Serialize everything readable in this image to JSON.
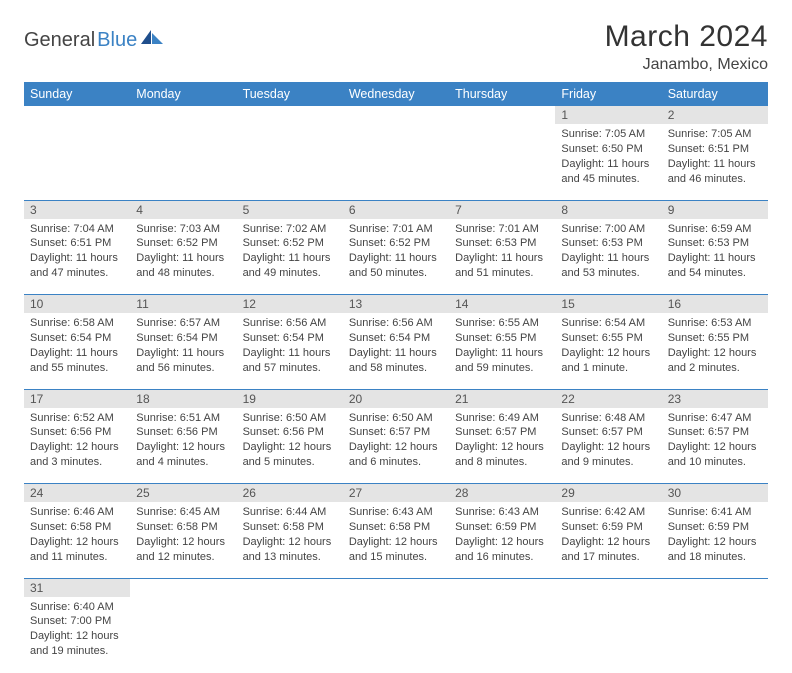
{
  "brand": {
    "part1": "General",
    "part2": "Blue"
  },
  "title": "March 2024",
  "location": "Janambo, Mexico",
  "colors": {
    "header_bg": "#3b82c4",
    "header_text": "#ffffff",
    "daynum_bg": "#e4e4e4",
    "border": "#3b82c4",
    "text": "#444444"
  },
  "day_names": [
    "Sunday",
    "Monday",
    "Tuesday",
    "Wednesday",
    "Thursday",
    "Friday",
    "Saturday"
  ],
  "weeks": [
    [
      null,
      null,
      null,
      null,
      null,
      {
        "n": "1",
        "sunrise": "Sunrise: 7:05 AM",
        "sunset": "Sunset: 6:50 PM",
        "daylight": "Daylight: 11 hours and 45 minutes."
      },
      {
        "n": "2",
        "sunrise": "Sunrise: 7:05 AM",
        "sunset": "Sunset: 6:51 PM",
        "daylight": "Daylight: 11 hours and 46 minutes."
      }
    ],
    [
      {
        "n": "3",
        "sunrise": "Sunrise: 7:04 AM",
        "sunset": "Sunset: 6:51 PM",
        "daylight": "Daylight: 11 hours and 47 minutes."
      },
      {
        "n": "4",
        "sunrise": "Sunrise: 7:03 AM",
        "sunset": "Sunset: 6:52 PM",
        "daylight": "Daylight: 11 hours and 48 minutes."
      },
      {
        "n": "5",
        "sunrise": "Sunrise: 7:02 AM",
        "sunset": "Sunset: 6:52 PM",
        "daylight": "Daylight: 11 hours and 49 minutes."
      },
      {
        "n": "6",
        "sunrise": "Sunrise: 7:01 AM",
        "sunset": "Sunset: 6:52 PM",
        "daylight": "Daylight: 11 hours and 50 minutes."
      },
      {
        "n": "7",
        "sunrise": "Sunrise: 7:01 AM",
        "sunset": "Sunset: 6:53 PM",
        "daylight": "Daylight: 11 hours and 51 minutes."
      },
      {
        "n": "8",
        "sunrise": "Sunrise: 7:00 AM",
        "sunset": "Sunset: 6:53 PM",
        "daylight": "Daylight: 11 hours and 53 minutes."
      },
      {
        "n": "9",
        "sunrise": "Sunrise: 6:59 AM",
        "sunset": "Sunset: 6:53 PM",
        "daylight": "Daylight: 11 hours and 54 minutes."
      }
    ],
    [
      {
        "n": "10",
        "sunrise": "Sunrise: 6:58 AM",
        "sunset": "Sunset: 6:54 PM",
        "daylight": "Daylight: 11 hours and 55 minutes."
      },
      {
        "n": "11",
        "sunrise": "Sunrise: 6:57 AM",
        "sunset": "Sunset: 6:54 PM",
        "daylight": "Daylight: 11 hours and 56 minutes."
      },
      {
        "n": "12",
        "sunrise": "Sunrise: 6:56 AM",
        "sunset": "Sunset: 6:54 PM",
        "daylight": "Daylight: 11 hours and 57 minutes."
      },
      {
        "n": "13",
        "sunrise": "Sunrise: 6:56 AM",
        "sunset": "Sunset: 6:54 PM",
        "daylight": "Daylight: 11 hours and 58 minutes."
      },
      {
        "n": "14",
        "sunrise": "Sunrise: 6:55 AM",
        "sunset": "Sunset: 6:55 PM",
        "daylight": "Daylight: 11 hours and 59 minutes."
      },
      {
        "n": "15",
        "sunrise": "Sunrise: 6:54 AM",
        "sunset": "Sunset: 6:55 PM",
        "daylight": "Daylight: 12 hours and 1 minute."
      },
      {
        "n": "16",
        "sunrise": "Sunrise: 6:53 AM",
        "sunset": "Sunset: 6:55 PM",
        "daylight": "Daylight: 12 hours and 2 minutes."
      }
    ],
    [
      {
        "n": "17",
        "sunrise": "Sunrise: 6:52 AM",
        "sunset": "Sunset: 6:56 PM",
        "daylight": "Daylight: 12 hours and 3 minutes."
      },
      {
        "n": "18",
        "sunrise": "Sunrise: 6:51 AM",
        "sunset": "Sunset: 6:56 PM",
        "daylight": "Daylight: 12 hours and 4 minutes."
      },
      {
        "n": "19",
        "sunrise": "Sunrise: 6:50 AM",
        "sunset": "Sunset: 6:56 PM",
        "daylight": "Daylight: 12 hours and 5 minutes."
      },
      {
        "n": "20",
        "sunrise": "Sunrise: 6:50 AM",
        "sunset": "Sunset: 6:57 PM",
        "daylight": "Daylight: 12 hours and 6 minutes."
      },
      {
        "n": "21",
        "sunrise": "Sunrise: 6:49 AM",
        "sunset": "Sunset: 6:57 PM",
        "daylight": "Daylight: 12 hours and 8 minutes."
      },
      {
        "n": "22",
        "sunrise": "Sunrise: 6:48 AM",
        "sunset": "Sunset: 6:57 PM",
        "daylight": "Daylight: 12 hours and 9 minutes."
      },
      {
        "n": "23",
        "sunrise": "Sunrise: 6:47 AM",
        "sunset": "Sunset: 6:57 PM",
        "daylight": "Daylight: 12 hours and 10 minutes."
      }
    ],
    [
      {
        "n": "24",
        "sunrise": "Sunrise: 6:46 AM",
        "sunset": "Sunset: 6:58 PM",
        "daylight": "Daylight: 12 hours and 11 minutes."
      },
      {
        "n": "25",
        "sunrise": "Sunrise: 6:45 AM",
        "sunset": "Sunset: 6:58 PM",
        "daylight": "Daylight: 12 hours and 12 minutes."
      },
      {
        "n": "26",
        "sunrise": "Sunrise: 6:44 AM",
        "sunset": "Sunset: 6:58 PM",
        "daylight": "Daylight: 12 hours and 13 minutes."
      },
      {
        "n": "27",
        "sunrise": "Sunrise: 6:43 AM",
        "sunset": "Sunset: 6:58 PM",
        "daylight": "Daylight: 12 hours and 15 minutes."
      },
      {
        "n": "28",
        "sunrise": "Sunrise: 6:43 AM",
        "sunset": "Sunset: 6:59 PM",
        "daylight": "Daylight: 12 hours and 16 minutes."
      },
      {
        "n": "29",
        "sunrise": "Sunrise: 6:42 AM",
        "sunset": "Sunset: 6:59 PM",
        "daylight": "Daylight: 12 hours and 17 minutes."
      },
      {
        "n": "30",
        "sunrise": "Sunrise: 6:41 AM",
        "sunset": "Sunset: 6:59 PM",
        "daylight": "Daylight: 12 hours and 18 minutes."
      }
    ],
    [
      {
        "n": "31",
        "sunrise": "Sunrise: 6:40 AM",
        "sunset": "Sunset: 7:00 PM",
        "daylight": "Daylight: 12 hours and 19 minutes."
      },
      null,
      null,
      null,
      null,
      null,
      null
    ]
  ]
}
